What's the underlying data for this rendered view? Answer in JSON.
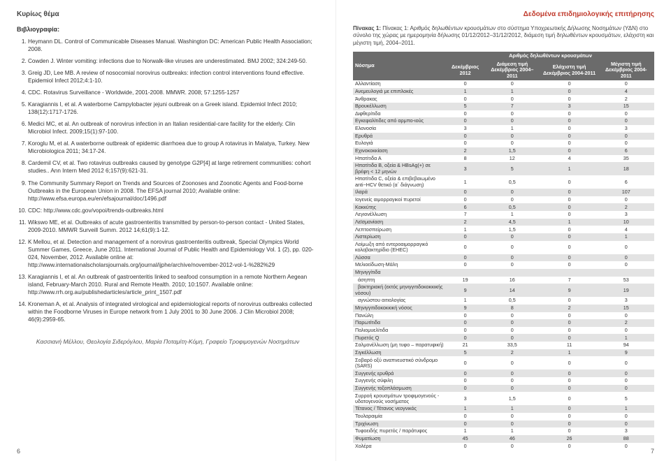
{
  "leftPage": {
    "header": "Κυρίως θέμα",
    "bibTitle": "Βιβλιογραφία:",
    "refs": [
      "Heymann DL. Control of Communicable Diseases Manual. Washington DC: American Public Health Association; 2008.",
      "Cowden J. Winter vomiting: infections due to Norwalk-like viruses are underestimated. BMJ 2002; 324:249-50.",
      "Greig JD, Lee MB. A review of nosocomial norovirus outbreaks: infection control interventions found effective. Epidemiol Infect 2012;4:1-10.",
      "CDC. Rotavirus Surveillance - Worldwide, 2001-2008. MMWR. 2008; 57:1255-1257",
      "Karagiannis I, et al. A waterborne Campylobacter jejuni outbreak on a Greek island. Epidemiol Infect 2010; 138(12):1717-1726.",
      "Medici MC, et al. An outbreak of norovirus infection in an Italian residential-care facility for the elderly. Clin Microbiol Infect. 2009;15(1):97-100.",
      "Koroglu M, et al. A waterborne outbreak of epidemic diarrhoea due to group A rotavirus in Malatya, Turkey. New Microbiologica 2011; 34:17-24.",
      "Cardemil CV, et al. Two rotavirus outbreaks caused by genotype G2P[4] at large retirement communities: cohort studies.. Ann Intern Med 2012 6;157(9):621-31.",
      "The Community Summary Report on Trends and Sources of Zoonoses and Zoonotic Agents and Food-borne Outbreaks in the European Union in 2008. The EFSA journal 2010; Available online: http://www.efsa.europa.eu/en/efsajournal/doc/1496.pdf",
      "CDC: http://www.cdc.gov/vopoi/trends-outbreaks.html",
      "Wikswo ME, et al. Outbreaks of acute gastroenteritis transmitted by person-to-person contact - United States, 2009-2010. MMWR Surveill Summ. 2012 14;61(9):1-12.",
      "K Mellou, et al. Detection and management of a norovirus gastroenteritis outbreak, Special Olympics World Summer Games, Greece, June 2011. International Journal of Public Health and Epidemiology Vol. 1 (2), pp. 020-024, November, 2012. Available online at: http://www.internationalscholarsjournals.org/journal/ijphe/archive/november-2012-vol-1-%282%29",
      "Karagiannis I, et al. An outbreak of gastroenteritis linked to seafood consumption in a remote Northern Aegean island, February-March 2010. Rural and Remote Health. 2010; 10:1507. Available online: http://www.rrh.org.au/publishedarticles/article_print_1507.pdf",
      "Kroneman A, et al. Analysis of integrated virological and epidemiological reports of norovirus outbreaks collected within the Foodborne Viruses in Europe network from 1 July 2001 to 30 June 2006. J Clin Microbiol 2008; 46(9):2959-65."
    ],
    "authors": "Κασσιανή Μέλλου, Θεολογία Σιδερόγλου, Μαρία Ποταμίτη-Κόμη, Γραφείο Τροφιμογενών Νοσημάτων",
    "pageNum": "6"
  },
  "rightPage": {
    "header": "Δεδομένα επιδημιολογικής επιτήρησης",
    "caption": "Πίνακας 1: Αριθμός δηλωθέντων κρουσμάτων στο σύστημα Υποχρεωτικής Δήλωσης Νοσημάτων (ΥΔΝ) στο σύνολο της χώρας με ημερομηνία δήλωσης 01/12/2012–31/12/2012, διάμεση τιμή δηλωθέντων κρουσμάτων, ελάχιστη και μέγιστη τιμή, 2004–2011.",
    "thead": {
      "col1": "Νόσημα",
      "colGroup": "Αριθμός δηλωθέντων κρουσμάτων",
      "sub": [
        "Δεκέμβριος 2012",
        "Διάμεση τιμή Δεκέμβριος 2004–2011",
        "Ελάχιστη τιμή Δεκέμβριος 2004-2011",
        "Μέγιστη τιμή Δεκέμβριος 2004-2011"
      ]
    },
    "rows": [
      [
        "Αλλαντίαση",
        "0",
        "0",
        "0",
        "0"
      ],
      [
        "Ανεμευλογιά με επιπλοκές",
        "1",
        "1",
        "0",
        "4"
      ],
      [
        "Άνθρακας",
        "0",
        "0",
        "0",
        "2"
      ],
      [
        "Βρουκέλλωση",
        "5",
        "7",
        "3",
        "15"
      ],
      [
        "Διφθερίτιδα",
        "0",
        "0",
        "0",
        "0"
      ],
      [
        "Εγκεφαλίτιδες από αρμπο-ιούς",
        "0",
        "0",
        "0",
        "0"
      ],
      [
        "Ελονοσία",
        "3",
        "1",
        "0",
        "3"
      ],
      [
        "Ερυθρά",
        "0",
        "0",
        "0",
        "0"
      ],
      [
        "Ευλογιά",
        "0",
        "0",
        "0",
        "0"
      ],
      [
        "Εχινοκοκκίαση",
        "2",
        "1,5",
        "0",
        "6"
      ],
      [
        "Ηπατίτιδα Α",
        "8",
        "12",
        "4",
        "35"
      ],
      [
        "Ηπατίτιδα Β, οξεία & HBsAg(+) σε βρέφη < 12 μηνών",
        "3",
        "5",
        "1",
        "18"
      ],
      [
        "Ηπατίτιδα C, οξεία & επιβεβαιωμένο anti−HCV θετικό (α΄ διάγνωση)",
        "1",
        "0,5",
        "0",
        "6"
      ],
      [
        "Ιλαρά",
        "0",
        "0",
        "0",
        "107"
      ],
      [
        "Ιογενείς αιμορραγικοί πυρετοί",
        "0",
        "0",
        "0",
        "0"
      ],
      [
        "Κοκκύτης",
        "6",
        "0,5",
        "0",
        "2"
      ],
      [
        "Λεγιονέλλωση",
        "7",
        "1",
        "0",
        "3"
      ],
      [
        "Λεϊσμανίαση",
        "2",
        "4,5",
        "1",
        "10"
      ],
      [
        "Λεπτοσπείρωση",
        "1",
        "1,5",
        "0",
        "4"
      ],
      [
        "Λιστερίωση",
        "0",
        "0",
        "0",
        "1"
      ],
      [
        "Λοίμωξη από εντεροαιμορραγικό κολοβακτηρίδιο (EHEC)",
        "0",
        "0",
        "0",
        "0"
      ],
      [
        "Λύσσα",
        "0",
        "0",
        "0",
        "0"
      ],
      [
        "Μελιοείδωση-Μάλη",
        "0",
        "0",
        "0",
        "0"
      ],
      [
        "Μηνιγγίτιδα",
        "",
        "",
        "",
        ""
      ],
      [
        "  άσηπτη",
        "19",
        "16",
        "7",
        "53"
      ],
      [
        "  βακτηριακή (εκτός μηνιγγιτιδοκοκκικής νόσου)",
        "9",
        "14",
        "9",
        "19"
      ],
      [
        "  αγνώστου αιτιολογίας",
        "1",
        "0,5",
        "0",
        "3"
      ],
      [
        "Μηνιγγιτιδοκοκκική νόσος",
        "9",
        "8",
        "2",
        "15"
      ],
      [
        "Πανώλη",
        "0",
        "0",
        "0",
        "0"
      ],
      [
        "Παρωτίτιδα",
        "0",
        "0",
        "0",
        "2"
      ],
      [
        "Πολιομυελίτιδα",
        "0",
        "0",
        "0",
        "0"
      ],
      [
        "Πυρετός Q",
        "0",
        "0",
        "0",
        "1"
      ],
      [
        "Σαλμονέλλωση (μη τυφο – παρατυφική)",
        "21",
        "33,5",
        "11",
        "94"
      ],
      [
        "Σιγκέλλωση",
        "5",
        "2",
        "1",
        "9"
      ],
      [
        "Σοβαρό οξύ αναπνευστικό σύνδρομο (SARS)",
        "0",
        "0",
        "0",
        "0"
      ],
      [
        "Συγγενής ερυθρά",
        "0",
        "0",
        "0",
        "0"
      ],
      [
        "Συγγενής σύφιλη",
        "0",
        "0",
        "0",
        "0"
      ],
      [
        "Συγγενής τοξοπλάσμωση",
        "0",
        "0",
        "0",
        "0"
      ],
      [
        "Συρροή κρουσμάτων τροφιμογενούς - υδατογενούς νοσήματος",
        "3",
        "1,5",
        "0",
        "5"
      ],
      [
        "Τέτανος / Τέτανος νεογνικός",
        "1",
        "1",
        "0",
        "1"
      ],
      [
        "Τουλαραιμία",
        "0",
        "0",
        "0",
        "0"
      ],
      [
        "Τριχίνωση",
        "0",
        "0",
        "0",
        "0"
      ],
      [
        "Τυφοειδής πυρετός / παράτυφος",
        "1",
        "1",
        "0",
        "3"
      ],
      [
        "Φυματίωση",
        "45",
        "46",
        "26",
        "88"
      ],
      [
        "Χολέρα",
        "0",
        "0",
        "0",
        "0"
      ]
    ],
    "pageNum": "7"
  },
  "colors": {
    "headerLeft": "#444444",
    "headerRight": "#c0392b",
    "thBg": "#6b6b6b",
    "altRow": "#e3e3e3"
  }
}
